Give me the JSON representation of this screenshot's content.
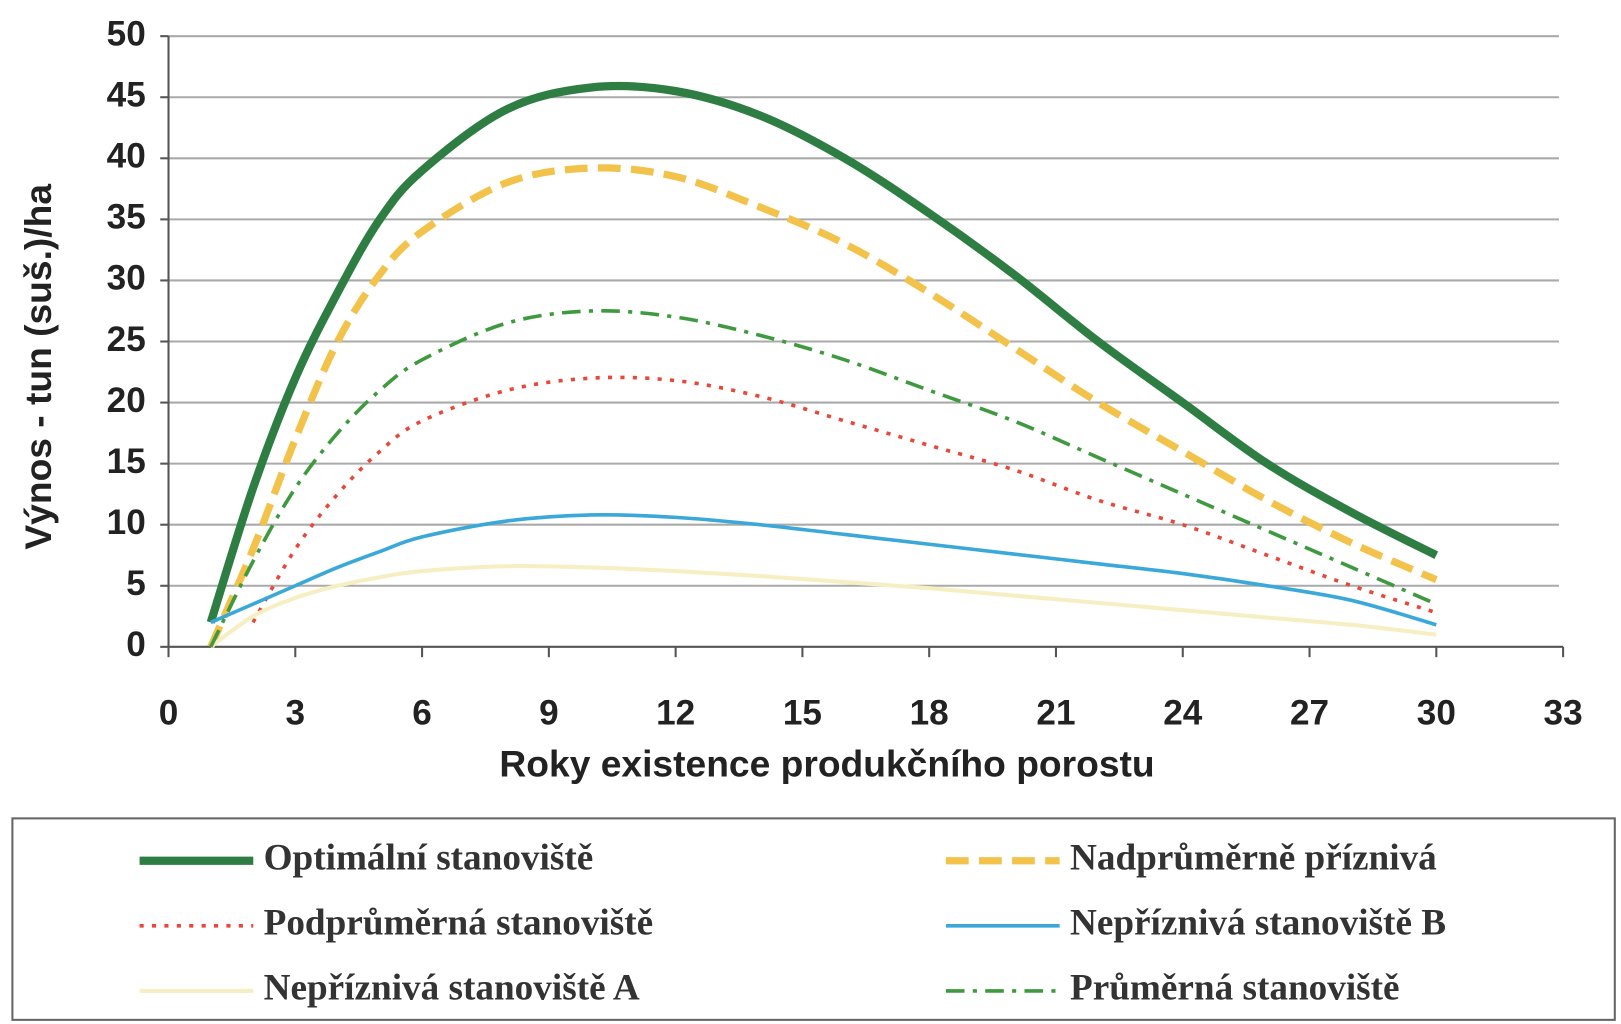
{
  "chart_data": {
    "type": "line",
    "x_label": "Roky existence produkčního porostu",
    "y_label": "Výnos - tun (suš.)/ha",
    "x": [
      1,
      2,
      3,
      4,
      5,
      6,
      8,
      10,
      12,
      14,
      16,
      18,
      20,
      22,
      24,
      26,
      28,
      30
    ],
    "series": [
      {
        "name": "Optimální stanoviště",
        "color": "#2e7d43",
        "style": "solid",
        "width": 8,
        "values": [
          2,
          13,
          22,
          29,
          35,
          39,
          44,
          45.8,
          45.5,
          43.5,
          40,
          35.5,
          30.5,
          25,
          20,
          15,
          11,
          7.5
        ]
      },
      {
        "name": "Nadprůměrně příznivá",
        "color": "#f2c24a",
        "style": "dashed",
        "width": 7,
        "values": [
          0,
          8,
          17,
          25,
          30.5,
          34,
          38,
          39.2,
          38.5,
          36,
          33,
          29,
          24.5,
          20,
          16,
          12,
          8.5,
          5.5
        ]
      },
      {
        "name": "Podprůměrná stanoviště",
        "color": "#e8483a",
        "style": "dotted",
        "width": 3.5,
        "values": [
          null,
          2,
          8,
          12.5,
          16,
          18.5,
          21,
          22,
          21.8,
          20.5,
          18.5,
          16.5,
          14.5,
          12,
          10,
          7.5,
          5,
          2.8
        ]
      },
      {
        "name": "Nepříznivá stanoviště B",
        "color": "#3aa8d8",
        "style": "solid",
        "width": 3.5,
        "values": [
          2,
          3.5,
          5,
          6.5,
          7.8,
          9,
          10.3,
          10.8,
          10.6,
          10,
          9.2,
          8.4,
          7.6,
          6.8,
          6,
          5,
          3.8,
          1.8
        ]
      },
      {
        "name": "Nepříznivá stanoviště A",
        "color": "#f7efc4",
        "style": "solid",
        "width": 4,
        "values": [
          0,
          2.5,
          4,
          5,
          5.7,
          6.2,
          6.6,
          6.5,
          6.2,
          5.8,
          5.3,
          4.8,
          4.2,
          3.6,
          3,
          2.4,
          1.8,
          1
        ]
      },
      {
        "name": "Průměrná stanoviště",
        "color": "#3f9a3f",
        "style": "dashdot",
        "width": 3.5,
        "values": [
          0,
          7,
          13,
          17.5,
          21,
          23.5,
          26.5,
          27.5,
          27,
          25.5,
          23.5,
          21,
          18.5,
          15.5,
          12.5,
          9.5,
          6.5,
          3.5
        ]
      }
    ],
    "xlim": [
      0,
      33
    ],
    "xticks": [
      0,
      3,
      6,
      9,
      12,
      15,
      18,
      21,
      24,
      27,
      30,
      33
    ],
    "ylim": [
      0,
      50
    ],
    "yticks": [
      0,
      5,
      10,
      15,
      20,
      25,
      30,
      35,
      40,
      45,
      50
    ],
    "grid": true
  }
}
